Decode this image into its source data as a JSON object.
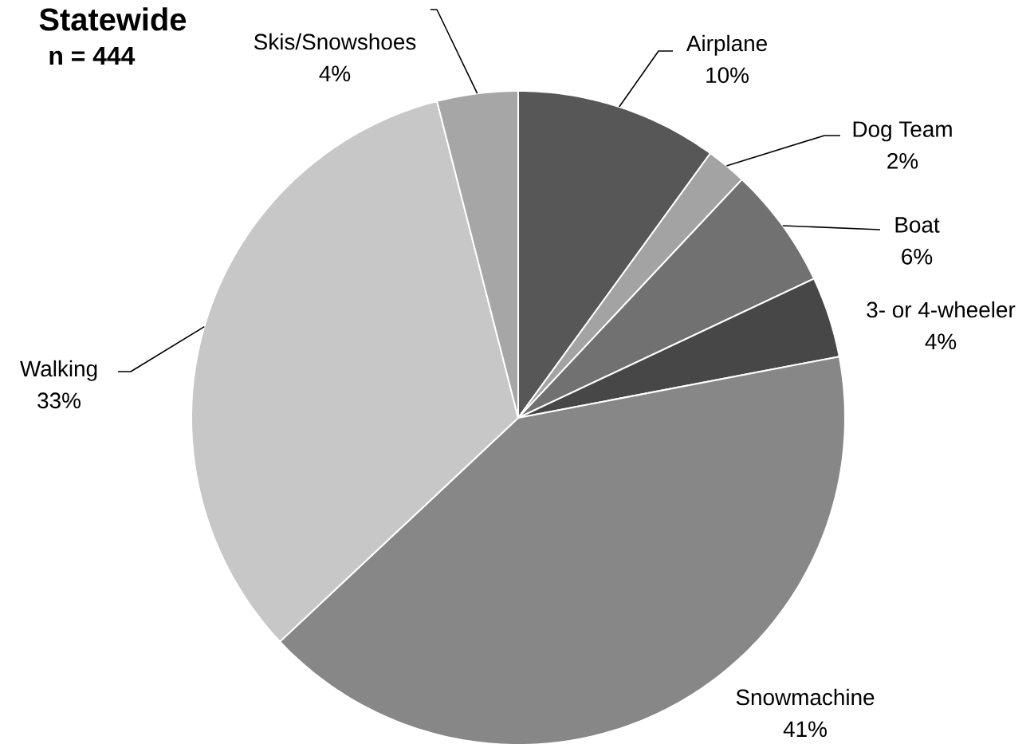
{
  "chart_data": {
    "type": "pie",
    "title": "Statewide",
    "categories": [
      "Airplane",
      "Dog Team",
      "Boat",
      "3- or 4-wheeler",
      "Snowmachine",
      "Walking",
      "Skis/Snowshoes"
    ],
    "values": [
      10,
      2,
      6,
      4,
      41,
      33,
      4
    ],
    "value_labels": [
      "10%",
      "2%",
      "6%",
      "4%",
      "41%",
      "33%",
      "4%"
    ],
    "colors": [
      "#575757",
      "#a3a3a3",
      "#717171",
      "#474747",
      "#878787",
      "#c7c7c7",
      "#a6a6a6"
    ],
    "annotations": [
      "n = 444"
    ]
  }
}
